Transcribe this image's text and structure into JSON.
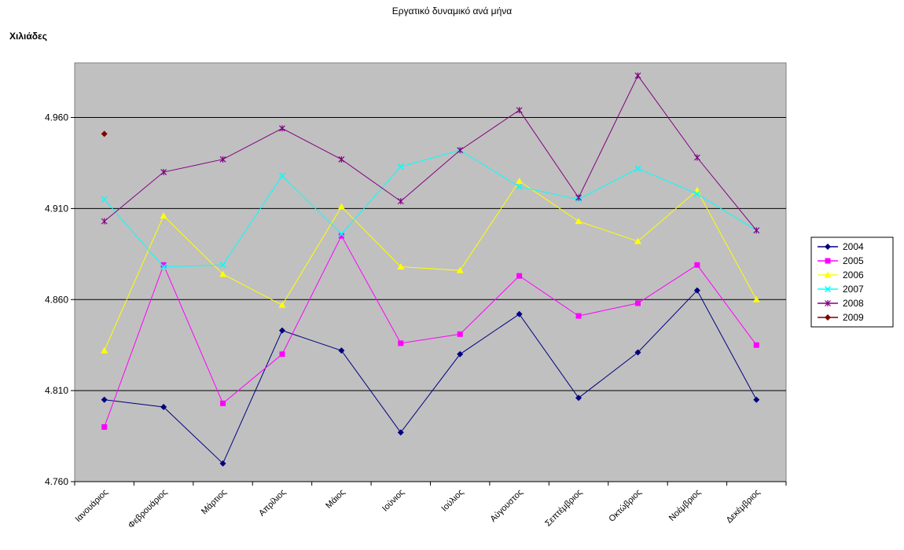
{
  "chart_data": {
    "type": "line",
    "title": "Εργατικό δυναμικό ανά μήνα",
    "xlabel": "",
    "ylabel": "Χιλιάδες",
    "ylim": [
      4760,
      4990
    ],
    "yticks": [
      4760,
      4810,
      4860,
      4910,
      4960
    ],
    "ytick_labels": [
      "4.760",
      "4.810",
      "4.860",
      "4.910",
      "4.960"
    ],
    "grid": true,
    "legend_position": "right",
    "categories": [
      "Ιανουάριος",
      "Φεβρουάριος",
      "Μάρτιος",
      "Απρίλιος",
      "Μάιος",
      "Ιούνιος",
      "Ιούλιος",
      "Αύγουστος",
      "Σεπτέμβριος",
      "Οκτώβριος",
      "Νοέμβριος",
      "Δεκέμβριος"
    ],
    "series": [
      {
        "name": "2004",
        "color": "#000080",
        "marker": "diamond",
        "values": [
          4805,
          4801,
          4770,
          4843,
          4832,
          4787,
          4830,
          4852,
          4806,
          4831,
          4865,
          4805
        ]
      },
      {
        "name": "2005",
        "color": "#ff00ff",
        "marker": "square",
        "values": [
          4790,
          4879,
          4803,
          4830,
          4895,
          4836,
          4841,
          4873,
          4851,
          4858,
          4879,
          4835
        ]
      },
      {
        "name": "2006",
        "color": "#ffff00",
        "marker": "triangle",
        "values": [
          4832,
          4906,
          4874,
          4857,
          4911,
          4878,
          4876,
          4925,
          4903,
          4892,
          4920,
          4860
        ]
      },
      {
        "name": "2007",
        "color": "#00ffff",
        "marker": "x",
        "values": [
          4915,
          4878,
          4879,
          4928,
          4896,
          4933,
          4942,
          4922,
          4915,
          4932,
          4918,
          4898
        ]
      },
      {
        "name": "2008",
        "color": "#800080",
        "marker": "star",
        "values": [
          4903,
          4930,
          4937,
          4954,
          4937,
          4914,
          4942,
          4964,
          4916,
          4983,
          4938,
          4898
        ]
      },
      {
        "name": "2009",
        "color": "#800000",
        "marker": "diamond",
        "values": [
          4951,
          null,
          null,
          null,
          null,
          null,
          null,
          null,
          null,
          null,
          null,
          null
        ]
      }
    ]
  }
}
